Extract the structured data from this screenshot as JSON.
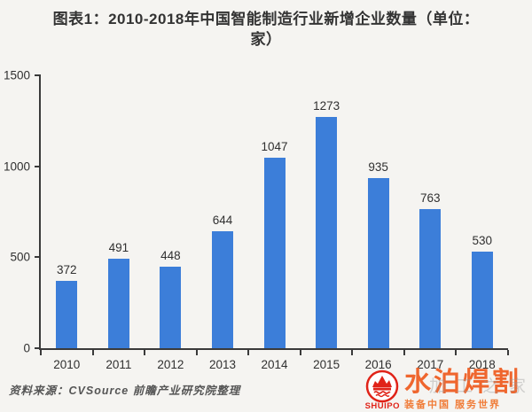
{
  "title": {
    "line1": "图表1：2010-2018年中国智能制造行业新增企业数量（单位：",
    "line2": "家）"
  },
  "chart_data": {
    "type": "bar",
    "title": "图表1：2010-2018年中国智能制造行业新增企业数量（单位：家）",
    "categories": [
      "2010",
      "2011",
      "2012",
      "2013",
      "2014",
      "2015",
      "2016",
      "2017",
      "2018"
    ],
    "values": [
      372,
      491,
      448,
      644,
      1047,
      1273,
      935,
      763,
      530
    ],
    "xlabel": "",
    "ylabel": "",
    "ylim": [
      0,
      1500
    ],
    "yticks": [
      0,
      500,
      1000,
      1500
    ],
    "grid": false,
    "legend": "none",
    "bar_color": "#3c7ed9",
    "axis_color": "#3a3a3a",
    "value_labels_shown": true
  },
  "source": {
    "text": "资料来源：CVSource 前瞻产业研究院整理"
  },
  "watermark": {
    "brand_cn": "水泊焊割",
    "brand_en": "SHUIPO",
    "tagline": "装备中国 服务世界",
    "faint_text": "加工之家",
    "brand_color": "#ef5a1e",
    "badge_color": "#e02318"
  }
}
